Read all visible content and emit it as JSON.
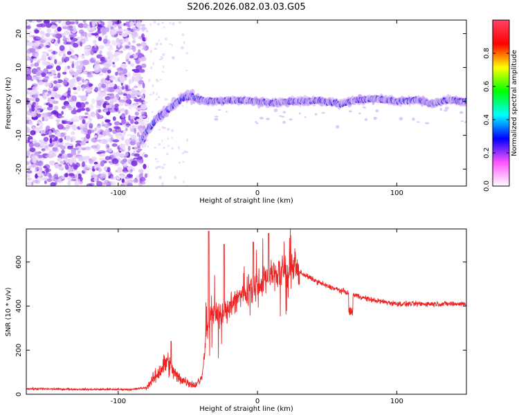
{
  "title": "S206.2026.082.03.03.G05",
  "chart_data": [
    {
      "type": "heatmap",
      "xlabel": "Height of straight line (km)",
      "ylabel": "Frequency (Hz)",
      "xlim": [
        -166,
        150
      ],
      "ylim": [
        -25,
        24
      ],
      "x_ticks": [
        -100,
        0,
        100
      ],
      "x_tick_labels": [
        "-100",
        "0",
        "100"
      ],
      "y_ticks": [
        -20,
        -10,
        0,
        10,
        20
      ],
      "y_tick_labels": [
        "-20",
        "-10",
        "0",
        "10",
        "20"
      ],
      "noise_region_x": [
        -166,
        -80
      ],
      "ridge": [
        {
          "x": -83,
          "y": -11
        },
        {
          "x": -78,
          "y": -8
        },
        {
          "x": -72,
          "y": -5
        },
        {
          "x": -66,
          "y": -3
        },
        {
          "x": -60,
          "y": -1
        },
        {
          "x": -54,
          "y": 1
        },
        {
          "x": -48,
          "y": 1.5
        },
        {
          "x": -42,
          "y": 0.5
        },
        {
          "x": -35,
          "y": 0
        },
        {
          "x": -20,
          "y": 0.3
        },
        {
          "x": -5,
          "y": 0.2
        },
        {
          "x": 10,
          "y": -0.5
        },
        {
          "x": 25,
          "y": 0
        },
        {
          "x": 45,
          "y": 0.2
        },
        {
          "x": 60,
          "y": -0.8
        },
        {
          "x": 70,
          "y": 0.3
        },
        {
          "x": 85,
          "y": 0.8
        },
        {
          "x": 100,
          "y": 0
        },
        {
          "x": 115,
          "y": 0.5
        },
        {
          "x": 125,
          "y": -0.8
        },
        {
          "x": 135,
          "y": 0.3
        },
        {
          "x": 150,
          "y": 0
        }
      ],
      "colorbar": {
        "label": "Normalized spectral amplitude",
        "range": [
          0,
          1
        ],
        "ticks": [
          0.0,
          0.2,
          0.4,
          0.6,
          0.8
        ],
        "tick_labels": [
          "0.0",
          "0.2",
          "0.4",
          "0.6",
          "0.8"
        ],
        "colors": [
          "#ffffff",
          "#ff55ff",
          "#0000ff",
          "#00ffff",
          "#00ff00",
          "#ffff00",
          "#ff0000",
          "#ff4466"
        ]
      }
    },
    {
      "type": "line",
      "xlabel": "Height of straight line (km)",
      "ylabel": "SNR (10 * v/v)",
      "xlim": [
        -166,
        150
      ],
      "ylim": [
        0,
        750
      ],
      "x_ticks": [
        -100,
        0,
        100
      ],
      "x_tick_labels": [
        "-100",
        "0",
        "100"
      ],
      "y_ticks": [
        0,
        200,
        400,
        600
      ],
      "y_tick_labels": [
        "0",
        "200",
        "400",
        "600"
      ],
      "color": "#ee2222",
      "envelope": [
        {
          "x": -166,
          "y": 25
        },
        {
          "x": -120,
          "y": 22
        },
        {
          "x": -90,
          "y": 22
        },
        {
          "x": -80,
          "y": 30
        },
        {
          "x": -72,
          "y": 90
        },
        {
          "x": -65,
          "y": 150
        },
        {
          "x": -58,
          "y": 80
        },
        {
          "x": -52,
          "y": 60
        },
        {
          "x": -45,
          "y": 40
        },
        {
          "x": -40,
          "y": 70
        },
        {
          "x": -37,
          "y": 250
        },
        {
          "x": -33,
          "y": 380
        },
        {
          "x": -28,
          "y": 350
        },
        {
          "x": -20,
          "y": 400
        },
        {
          "x": -10,
          "y": 460
        },
        {
          "x": 0,
          "y": 500
        },
        {
          "x": 10,
          "y": 540
        },
        {
          "x": 20,
          "y": 560
        },
        {
          "x": 30,
          "y": 555
        },
        {
          "x": 40,
          "y": 520
        },
        {
          "x": 50,
          "y": 490
        },
        {
          "x": 60,
          "y": 470
        },
        {
          "x": 70,
          "y": 450
        },
        {
          "x": 80,
          "y": 430
        },
        {
          "x": 90,
          "y": 420
        },
        {
          "x": 100,
          "y": 410
        },
        {
          "x": 120,
          "y": 410
        },
        {
          "x": 150,
          "y": 410
        }
      ],
      "peaks": [
        {
          "x": -35,
          "y": 740
        },
        {
          "x": -24,
          "y": 680
        },
        {
          "x": 8,
          "y": 730
        },
        {
          "x": -62,
          "y": 240
        },
        {
          "x": -3,
          "y": 690
        }
      ]
    }
  ]
}
